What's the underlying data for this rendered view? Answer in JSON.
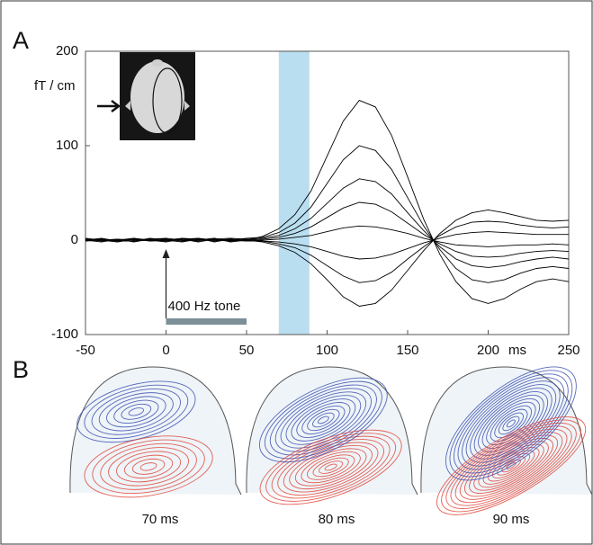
{
  "chart_data": {
    "type": "line",
    "panel_label": "A",
    "y_label": "fT / cm",
    "x_unit": "ms",
    "x": [
      -50,
      -40,
      -30,
      -20,
      -10,
      0,
      10,
      20,
      30,
      40,
      50,
      60,
      70,
      80,
      90,
      100,
      110,
      120,
      130,
      140,
      150,
      160,
      170,
      180,
      190,
      200,
      210,
      220,
      230,
      240,
      250
    ],
    "xlim": [
      -50,
      250
    ],
    "xticks": [
      -50,
      0,
      50,
      100,
      150,
      200,
      250
    ],
    "ylim": [
      -100,
      200
    ],
    "yticks": [
      -100,
      0,
      100,
      200
    ],
    "color": "#000000",
    "highlight": [
      70,
      89
    ],
    "highlight_color": "#b9def0",
    "stimulus": {
      "label": "400 Hz tone",
      "range": [
        0,
        50
      ],
      "color": "#7d8f99"
    },
    "series": [
      {
        "values": [
          0,
          1,
          -1,
          2,
          0,
          -1,
          1,
          2,
          -2,
          1,
          0,
          4,
          12,
          27,
          52,
          89,
          126,
          148,
          141,
          111,
          67,
          22,
          -15,
          -44,
          -62,
          -67,
          -62,
          -52,
          -44,
          -41,
          -44
        ]
      },
      {
        "values": [
          1,
          -1,
          0,
          2,
          -1,
          0,
          2,
          1,
          -1,
          0,
          2,
          3,
          8,
          18,
          35,
          60,
          85,
          100,
          95,
          75,
          45,
          15,
          -10,
          -30,
          -42,
          -45,
          -42,
          -35,
          -30,
          -28,
          -30
        ]
      },
      {
        "values": [
          -1,
          0,
          1,
          -2,
          1,
          2,
          0,
          -1,
          1,
          2,
          1,
          2,
          5,
          12,
          23,
          39,
          55,
          65,
          62,
          49,
          29,
          10,
          -7,
          -20,
          -27,
          -29,
          -27,
          -23,
          -20,
          -18,
          -20
        ]
      },
      {
        "values": [
          2,
          0,
          -1,
          1,
          0,
          -2,
          1,
          0,
          2,
          -1,
          0,
          1,
          3,
          7,
          14,
          24,
          34,
          40,
          38,
          30,
          18,
          6,
          -4,
          -12,
          -17,
          -18,
          -17,
          -14,
          -12,
          -11,
          -12
        ]
      },
      {
        "values": [
          0,
          -2,
          1,
          0,
          1,
          1,
          -1,
          2,
          0,
          1,
          -1,
          0,
          1,
          3,
          5,
          9,
          13,
          15,
          14,
          11,
          7,
          2,
          -2,
          -5,
          -6,
          -7,
          -6,
          -5,
          -5,
          -4,
          -5
        ]
      },
      {
        "values": [
          -1,
          1,
          0,
          -1,
          2,
          0,
          -2,
          1,
          0,
          -1,
          1,
          -1,
          -2,
          -4,
          -7,
          -12,
          -17,
          -20,
          -19,
          -15,
          -9,
          -3,
          2,
          6,
          8,
          9,
          8,
          7,
          6,
          6,
          6
        ]
      },
      {
        "values": [
          1,
          0,
          -2,
          1,
          -1,
          0,
          1,
          -2,
          1,
          0,
          -1,
          -1,
          -4,
          -8,
          -16,
          -27,
          -38,
          -45,
          -43,
          -34,
          -20,
          -7,
          5,
          14,
          19,
          20,
          19,
          16,
          14,
          13,
          14
        ]
      },
      {
        "values": [
          0,
          2,
          -1,
          -1,
          0,
          1,
          -1,
          0,
          2,
          -2,
          0,
          -2,
          -6,
          -13,
          -25,
          -42,
          -60,
          -70,
          -67,
          -53,
          -32,
          -11,
          7,
          21,
          29,
          32,
          29,
          25,
          21,
          20,
          21
        ]
      }
    ]
  },
  "panel_b": {
    "label": "B",
    "maps": [
      "70 ms",
      "80 ms",
      "90 ms"
    ]
  }
}
